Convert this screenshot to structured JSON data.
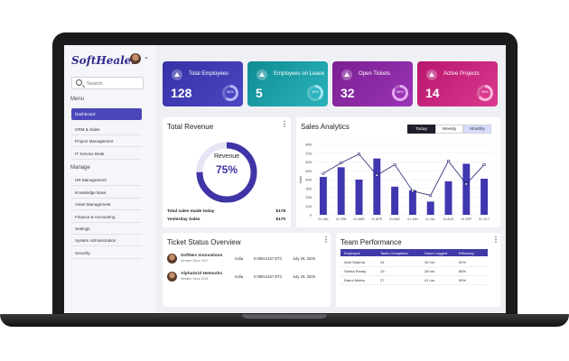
{
  "app": {
    "logo": "SoftHealer"
  },
  "search": {
    "placeholder": "Search"
  },
  "sidebar": {
    "menu_label": "Menu",
    "menu_items": [
      {
        "label": "Dashboard",
        "active": true
      },
      {
        "label": "CRM & Sales"
      },
      {
        "label": "Project Management"
      },
      {
        "label": "IT Service Desk"
      }
    ],
    "manage_label": "Manage",
    "manage_items": [
      {
        "label": "HR Management"
      },
      {
        "label": "Knowledge Base"
      },
      {
        "label": "Asset Management"
      },
      {
        "label": "Finance & Accounting"
      },
      {
        "label": "Settings"
      },
      {
        "label": "System Administration"
      },
      {
        "label": "Security"
      }
    ]
  },
  "stats": [
    {
      "label": "Total Employees",
      "value": "128",
      "percent": "60%",
      "fraction": 0.6,
      "bg": "#3732a6",
      "bg2": "#4a45c2",
      "ring": "#b6b4ff"
    },
    {
      "label": "Employees on Leave",
      "value": "5",
      "percent": "40%",
      "fraction": 0.4,
      "bg": "#0f8c92",
      "bg2": "#2bb3bd",
      "ring": "#9ee7ee"
    },
    {
      "label": "Open Tickets",
      "value": "32",
      "percent": "85%",
      "fraction": 0.85,
      "bg": "#7a1f92",
      "bg2": "#9b34b4",
      "ring": "#e6a9f4"
    },
    {
      "label": "Active Projects",
      "value": "14",
      "percent": "65%",
      "fraction": 0.65,
      "bg": "#b8156e",
      "bg2": "#d93a8e",
      "ring": "#ffb7dc"
    }
  ],
  "revenue": {
    "title": "Total Revenue",
    "center_label": "Revenue",
    "center_value": "75%",
    "fraction": 0.75,
    "color": "#3f35a7",
    "rows": [
      {
        "label": "Total sales made today",
        "value": "$178"
      },
      {
        "label": "Yesterday Sales",
        "value": "$170"
      }
    ]
  },
  "sales": {
    "title": "Sales Analytics",
    "tabs": [
      "Today",
      "Weekly",
      "Monthly"
    ]
  },
  "chart_data": {
    "type": "bar",
    "title": "Sales Analytics",
    "ylabel": "Sales",
    "ylim": [
      0,
      800
    ],
    "yticks": [
      "800",
      "700",
      "600",
      "500",
      "400",
      "300",
      "200",
      "100",
      "0"
    ],
    "categories": [
      "01 JAN",
      "01 FEB",
      "01 MAR",
      "01 APR",
      "01 MAY",
      "01 JUN",
      "01 JUL",
      "01 AUG",
      "01 SEP",
      "01 OCT"
    ],
    "series": [
      {
        "values": [
          430,
          540,
          400,
          640,
          320,
          280,
          150,
          380,
          580,
          410
        ]
      },
      {
        "values": [
          470,
          590,
          690,
          450,
          570,
          270,
          220,
          610,
          350,
          570
        ]
      }
    ],
    "bar_color": "#3f36b0",
    "line_color": "#23206b"
  },
  "tickets": {
    "title": "Ticket Status Overview",
    "rows": [
      {
        "name": "SoftNex Innovations",
        "sub": "Member Since 2017",
        "country": "India",
        "amount": "0.00814157 BTC",
        "date": "July 26, 2025"
      },
      {
        "name": "AlphaGrid Networks",
        "sub": "Member Since 2018",
        "country": "India",
        "amount": "0.00814157 BTC",
        "date": "July 26, 2025"
      }
    ]
  },
  "team": {
    "title": "Team Performance",
    "headers": [
      "Employee",
      "Tasks Completed",
      "Hours Logged",
      "Efficiency"
    ],
    "rows": [
      [
        "Amit Sharma",
        "24",
        "35 hrs",
        "92%"
      ],
      [
        "Sneha Reddy",
        "19",
        "28 hrs",
        "88%"
      ],
      [
        "Rahul Mehta",
        "27",
        "41 hrs",
        "95%"
      ]
    ]
  }
}
